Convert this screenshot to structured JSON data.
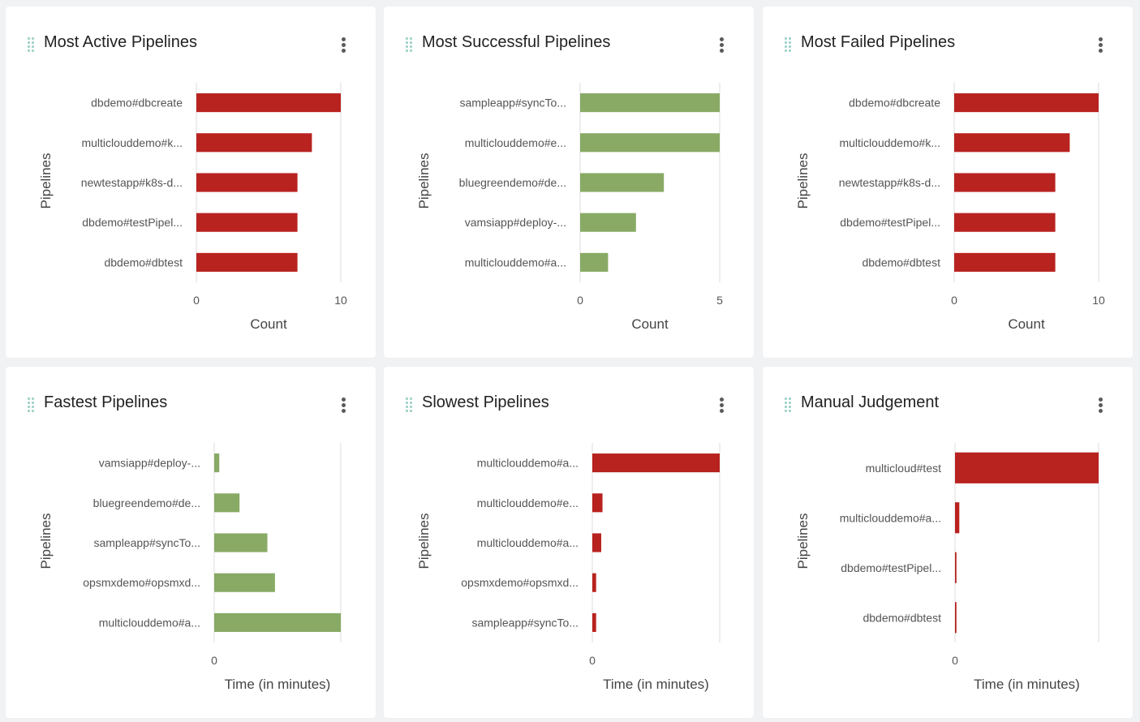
{
  "colors": {
    "red": "#b8221f",
    "green": "#88aa65",
    "axis": "#dddddd"
  },
  "icons": {
    "drag": "drag-handle-icon",
    "menu": "kebab-menu-icon"
  },
  "cards": [
    {
      "id": "most-active",
      "title": "Most Active Pipelines",
      "chart_data": {
        "type": "bar",
        "orientation": "horizontal",
        "categories": [
          "dbdemo#dbcreate",
          "multiclouddemo#k...",
          "newtestapp#k8s-d...",
          "dbdemo#testPipel...",
          "dbdemo#dbtest"
        ],
        "values": [
          10,
          8,
          7,
          7,
          7
        ],
        "xlabel": "Count",
        "ylabel": "Pipelines",
        "xlim": [
          0,
          10
        ],
        "ticks": [
          0,
          10
        ],
        "tick_labels": [
          "0",
          "10"
        ],
        "color": "#b8221f"
      }
    },
    {
      "id": "most-successful",
      "title": "Most Successful Pipelines",
      "chart_data": {
        "type": "bar",
        "orientation": "horizontal",
        "categories": [
          "sampleapp#syncTo...",
          "multiclouddemo#e...",
          "bluegreendemo#de...",
          "vamsiapp#deploy-...",
          "multiclouddemo#a..."
        ],
        "values": [
          5,
          5,
          3,
          2,
          1
        ],
        "xlabel": "Count",
        "ylabel": "Pipelines",
        "xlim": [
          0,
          5
        ],
        "ticks": [
          0,
          5
        ],
        "tick_labels": [
          "0",
          "5"
        ],
        "color": "#88aa65"
      }
    },
    {
      "id": "most-failed",
      "title": "Most Failed Pipelines",
      "chart_data": {
        "type": "bar",
        "orientation": "horizontal",
        "categories": [
          "dbdemo#dbcreate",
          "multiclouddemo#k...",
          "newtestapp#k8s-d...",
          "dbdemo#testPipel...",
          "dbdemo#dbtest"
        ],
        "values": [
          10,
          8,
          7,
          7,
          7
        ],
        "xlabel": "Count",
        "ylabel": "Pipelines",
        "xlim": [
          0,
          10
        ],
        "ticks": [
          0,
          10
        ],
        "tick_labels": [
          "0",
          "10"
        ],
        "color": "#b8221f"
      }
    },
    {
      "id": "fastest",
      "title": "Fastest Pipelines",
      "chart_data": {
        "type": "bar",
        "orientation": "horizontal",
        "categories": [
          "vamsiapp#deploy-...",
          "bluegreendemo#de...",
          "sampleapp#syncTo...",
          "opsmxdemo#opsmxd...",
          "multiclouddemo#a..."
        ],
        "values": [
          0.04,
          0.2,
          0.42,
          0.48,
          1.0
        ],
        "xlabel": "Time (in minutes)",
        "ylabel": "Pipelines",
        "xlim": [
          0,
          1
        ],
        "ticks": [
          0
        ],
        "tick_labels": [
          "0"
        ],
        "color": "#88aa65"
      }
    },
    {
      "id": "slowest",
      "title": "Slowest Pipelines",
      "chart_data": {
        "type": "bar",
        "orientation": "horizontal",
        "categories": [
          "multiclouddemo#a...",
          "multiclouddemo#e...",
          "multiclouddemo#a...",
          "opsmxdemo#opsmxd...",
          "sampleapp#syncTo..."
        ],
        "values": [
          1.0,
          0.08,
          0.07,
          0.03,
          0.03
        ],
        "xlabel": "Time (in minutes)",
        "ylabel": "Pipelines",
        "xlim": [
          0,
          1
        ],
        "ticks": [
          0
        ],
        "tick_labels": [
          "0"
        ],
        "color": "#b8221f"
      }
    },
    {
      "id": "manual-judgement",
      "title": "Manual Judgement",
      "chart_data": {
        "type": "bar",
        "orientation": "horizontal",
        "categories": [
          "multicloud#test",
          "multiclouddemo#a...",
          "dbdemo#testPipel...",
          "dbdemo#dbtest"
        ],
        "values": [
          1.0,
          0.03,
          0.01,
          0.01
        ],
        "xlabel": "Time (in minutes)",
        "ylabel": "Pipelines",
        "xlim": [
          0,
          1
        ],
        "ticks": [
          0
        ],
        "tick_labels": [
          "0"
        ],
        "color": "#b8221f"
      }
    }
  ]
}
